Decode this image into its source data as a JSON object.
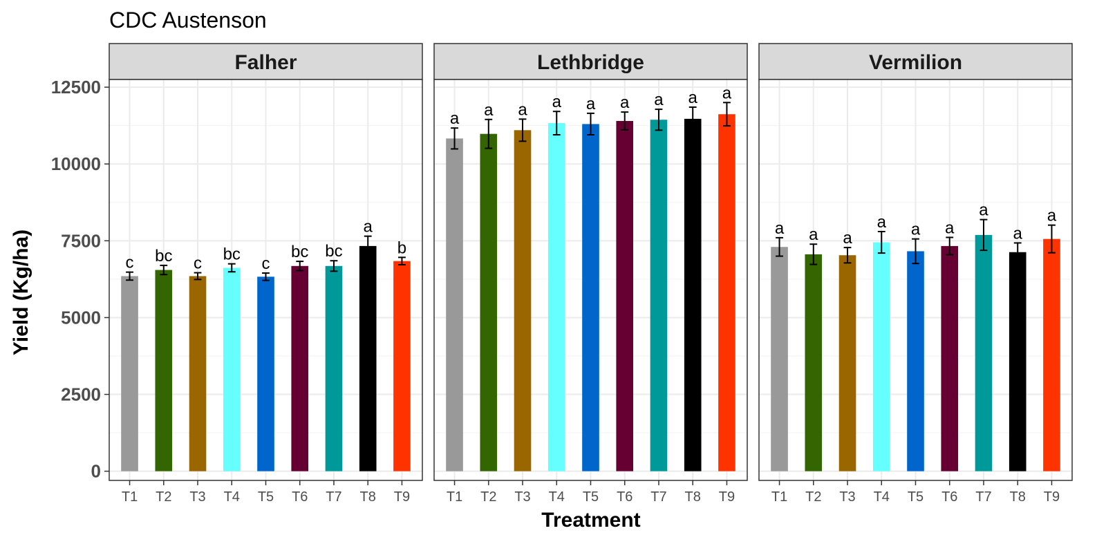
{
  "chart_data": {
    "type": "bar",
    "title": "CDC Austenson",
    "xlabel": "Treatment",
    "ylabel": "Yield (Kg/ha)",
    "ylim": [
      -300,
      12750
    ],
    "yticks": [
      0,
      2500,
      5000,
      7500,
      10000,
      12500
    ],
    "ytick_labels": [
      "0",
      "2500",
      "5000",
      "7500",
      "10000",
      "12500"
    ],
    "categories": [
      "T1",
      "T2",
      "T3",
      "T4",
      "T5",
      "T6",
      "T7",
      "T8",
      "T9"
    ],
    "colors": [
      "#999999",
      "#336600",
      "#996600",
      "#66ffff",
      "#0066cc",
      "#660033",
      "#009999",
      "#000000",
      "#ff3300"
    ],
    "grid": true,
    "legend": "none",
    "panels": [
      {
        "name": "Falher",
        "values": [
          6350,
          6550,
          6350,
          6620,
          6330,
          6680,
          6680,
          7330,
          6840
        ],
        "error": [
          130,
          150,
          110,
          130,
          120,
          150,
          170,
          320,
          120
        ],
        "letters": [
          "c",
          "bc",
          "c",
          "bc",
          "c",
          "bc",
          "bc",
          "a",
          "b"
        ]
      },
      {
        "name": "Lethbridge",
        "values": [
          10830,
          10980,
          11100,
          11330,
          11300,
          11400,
          11440,
          11470,
          11620
        ],
        "error": [
          340,
          470,
          360,
          380,
          350,
          290,
          340,
          380,
          380
        ],
        "letters": [
          "a",
          "a",
          "a",
          "a",
          "a",
          "a",
          "a",
          "a",
          "a"
        ]
      },
      {
        "name": "Vermilion",
        "values": [
          7300,
          7060,
          7030,
          7450,
          7160,
          7330,
          7690,
          7130,
          7560
        ],
        "error": [
          300,
          330,
          250,
          350,
          400,
          280,
          500,
          300,
          450
        ],
        "letters": [
          "a",
          "a",
          "a",
          "a",
          "a",
          "a",
          "a",
          "a",
          "a"
        ]
      }
    ]
  }
}
